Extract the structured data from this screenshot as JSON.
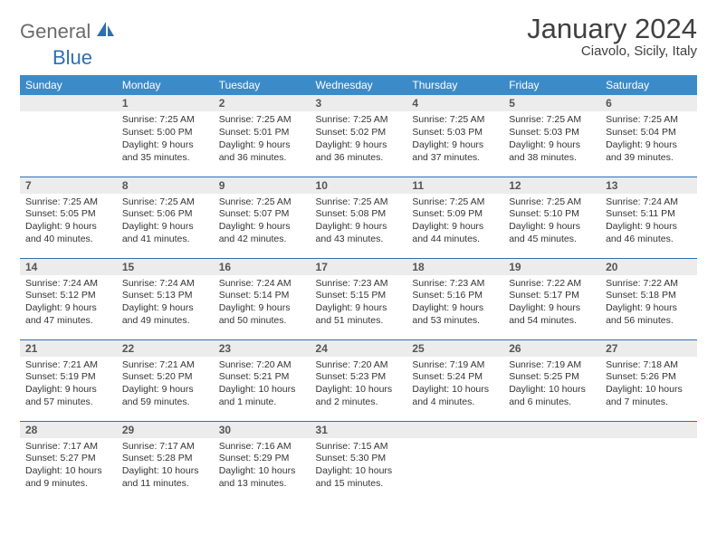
{
  "brand": {
    "part1": "General",
    "part2": "Blue"
  },
  "title": "January 2024",
  "location": "Ciavolo, Sicily, Italy",
  "header_color": "#3b8bc9",
  "rule_color": "#2f6fb0",
  "daynum_bg": "#ececec",
  "days_of_week": {
    "d0": "Sunday",
    "d1": "Monday",
    "d2": "Tuesday",
    "d3": "Wednesday",
    "d4": "Thursday",
    "d5": "Friday",
    "d6": "Saturday"
  },
  "days": {
    "1": {
      "n": "1",
      "sr": "Sunrise: 7:25 AM",
      "ss": "Sunset: 5:00 PM",
      "dl": "Daylight: 9 hours and 35 minutes."
    },
    "2": {
      "n": "2",
      "sr": "Sunrise: 7:25 AM",
      "ss": "Sunset: 5:01 PM",
      "dl": "Daylight: 9 hours and 36 minutes."
    },
    "3": {
      "n": "3",
      "sr": "Sunrise: 7:25 AM",
      "ss": "Sunset: 5:02 PM",
      "dl": "Daylight: 9 hours and 36 minutes."
    },
    "4": {
      "n": "4",
      "sr": "Sunrise: 7:25 AM",
      "ss": "Sunset: 5:03 PM",
      "dl": "Daylight: 9 hours and 37 minutes."
    },
    "5": {
      "n": "5",
      "sr": "Sunrise: 7:25 AM",
      "ss": "Sunset: 5:03 PM",
      "dl": "Daylight: 9 hours and 38 minutes."
    },
    "6": {
      "n": "6",
      "sr": "Sunrise: 7:25 AM",
      "ss": "Sunset: 5:04 PM",
      "dl": "Daylight: 9 hours and 39 minutes."
    },
    "7": {
      "n": "7",
      "sr": "Sunrise: 7:25 AM",
      "ss": "Sunset: 5:05 PM",
      "dl": "Daylight: 9 hours and 40 minutes."
    },
    "8": {
      "n": "8",
      "sr": "Sunrise: 7:25 AM",
      "ss": "Sunset: 5:06 PM",
      "dl": "Daylight: 9 hours and 41 minutes."
    },
    "9": {
      "n": "9",
      "sr": "Sunrise: 7:25 AM",
      "ss": "Sunset: 5:07 PM",
      "dl": "Daylight: 9 hours and 42 minutes."
    },
    "10": {
      "n": "10",
      "sr": "Sunrise: 7:25 AM",
      "ss": "Sunset: 5:08 PM",
      "dl": "Daylight: 9 hours and 43 minutes."
    },
    "11": {
      "n": "11",
      "sr": "Sunrise: 7:25 AM",
      "ss": "Sunset: 5:09 PM",
      "dl": "Daylight: 9 hours and 44 minutes."
    },
    "12": {
      "n": "12",
      "sr": "Sunrise: 7:25 AM",
      "ss": "Sunset: 5:10 PM",
      "dl": "Daylight: 9 hours and 45 minutes."
    },
    "13": {
      "n": "13",
      "sr": "Sunrise: 7:24 AM",
      "ss": "Sunset: 5:11 PM",
      "dl": "Daylight: 9 hours and 46 minutes."
    },
    "14": {
      "n": "14",
      "sr": "Sunrise: 7:24 AM",
      "ss": "Sunset: 5:12 PM",
      "dl": "Daylight: 9 hours and 47 minutes."
    },
    "15": {
      "n": "15",
      "sr": "Sunrise: 7:24 AM",
      "ss": "Sunset: 5:13 PM",
      "dl": "Daylight: 9 hours and 49 minutes."
    },
    "16": {
      "n": "16",
      "sr": "Sunrise: 7:24 AM",
      "ss": "Sunset: 5:14 PM",
      "dl": "Daylight: 9 hours and 50 minutes."
    },
    "17": {
      "n": "17",
      "sr": "Sunrise: 7:23 AM",
      "ss": "Sunset: 5:15 PM",
      "dl": "Daylight: 9 hours and 51 minutes."
    },
    "18": {
      "n": "18",
      "sr": "Sunrise: 7:23 AM",
      "ss": "Sunset: 5:16 PM",
      "dl": "Daylight: 9 hours and 53 minutes."
    },
    "19": {
      "n": "19",
      "sr": "Sunrise: 7:22 AM",
      "ss": "Sunset: 5:17 PM",
      "dl": "Daylight: 9 hours and 54 minutes."
    },
    "20": {
      "n": "20",
      "sr": "Sunrise: 7:22 AM",
      "ss": "Sunset: 5:18 PM",
      "dl": "Daylight: 9 hours and 56 minutes."
    },
    "21": {
      "n": "21",
      "sr": "Sunrise: 7:21 AM",
      "ss": "Sunset: 5:19 PM",
      "dl": "Daylight: 9 hours and 57 minutes."
    },
    "22": {
      "n": "22",
      "sr": "Sunrise: 7:21 AM",
      "ss": "Sunset: 5:20 PM",
      "dl": "Daylight: 9 hours and 59 minutes."
    },
    "23": {
      "n": "23",
      "sr": "Sunrise: 7:20 AM",
      "ss": "Sunset: 5:21 PM",
      "dl": "Daylight: 10 hours and 1 minute."
    },
    "24": {
      "n": "24",
      "sr": "Sunrise: 7:20 AM",
      "ss": "Sunset: 5:23 PM",
      "dl": "Daylight: 10 hours and 2 minutes."
    },
    "25": {
      "n": "25",
      "sr": "Sunrise: 7:19 AM",
      "ss": "Sunset: 5:24 PM",
      "dl": "Daylight: 10 hours and 4 minutes."
    },
    "26": {
      "n": "26",
      "sr": "Sunrise: 7:19 AM",
      "ss": "Sunset: 5:25 PM",
      "dl": "Daylight: 10 hours and 6 minutes."
    },
    "27": {
      "n": "27",
      "sr": "Sunrise: 7:18 AM",
      "ss": "Sunset: 5:26 PM",
      "dl": "Daylight: 10 hours and 7 minutes."
    },
    "28": {
      "n": "28",
      "sr": "Sunrise: 7:17 AM",
      "ss": "Sunset: 5:27 PM",
      "dl": "Daylight: 10 hours and 9 minutes."
    },
    "29": {
      "n": "29",
      "sr": "Sunrise: 7:17 AM",
      "ss": "Sunset: 5:28 PM",
      "dl": "Daylight: 10 hours and 11 minutes."
    },
    "30": {
      "n": "30",
      "sr": "Sunrise: 7:16 AM",
      "ss": "Sunset: 5:29 PM",
      "dl": "Daylight: 10 hours and 13 minutes."
    },
    "31": {
      "n": "31",
      "sr": "Sunrise: 7:15 AM",
      "ss": "Sunset: 5:30 PM",
      "dl": "Daylight: 10 hours and 15 minutes."
    }
  },
  "layout": {
    "weeks": [
      [
        null,
        "1",
        "2",
        "3",
        "4",
        "5",
        "6"
      ],
      [
        "7",
        "8",
        "9",
        "10",
        "11",
        "12",
        "13"
      ],
      [
        "14",
        "15",
        "16",
        "17",
        "18",
        "19",
        "20"
      ],
      [
        "21",
        "22",
        "23",
        "24",
        "25",
        "26",
        "27"
      ],
      [
        "28",
        "29",
        "30",
        "31",
        null,
        null,
        null
      ]
    ]
  }
}
